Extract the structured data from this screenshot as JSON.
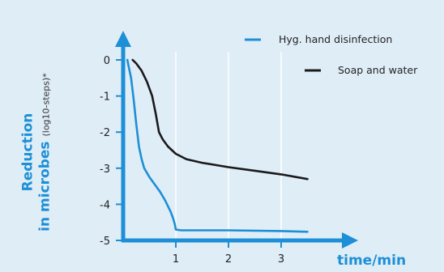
{
  "chart_data": {
    "type": "line",
    "ylabel_line1": "Reduction",
    "ylabel_line2": "in microbes",
    "ylabel_unit": "(log10-steps)*",
    "xlabel": "time/min",
    "xlim": [
      0,
      3.6
    ],
    "ylim": [
      -5,
      0
    ],
    "x_ticks": [
      1,
      2,
      3
    ],
    "y_ticks": [
      0,
      -1,
      -2,
      -3,
      -4,
      -5
    ],
    "x_tick_labels": [
      "1",
      "2",
      "3"
    ],
    "y_tick_labels": [
      "0",
      "-1",
      "-2",
      "-3",
      "-4",
      "-5"
    ],
    "legend_position": "top-right",
    "series": [
      {
        "name": "Hyg. hand disinfection",
        "color": "#1d8fd6",
        "points": [
          [
            0.08,
            0
          ],
          [
            0.1,
            -0.15
          ],
          [
            0.15,
            -0.5
          ],
          [
            0.2,
            -1.1
          ],
          [
            0.25,
            -1.8
          ],
          [
            0.3,
            -2.4
          ],
          [
            0.35,
            -2.75
          ],
          [
            0.4,
            -3.0
          ],
          [
            0.5,
            -3.25
          ],
          [
            0.6,
            -3.45
          ],
          [
            0.7,
            -3.65
          ],
          [
            0.8,
            -3.9
          ],
          [
            0.9,
            -4.2
          ],
          [
            0.95,
            -4.4
          ],
          [
            0.98,
            -4.55
          ],
          [
            1.0,
            -4.7
          ],
          [
            1.1,
            -4.72
          ],
          [
            2.0,
            -4.72
          ],
          [
            3.0,
            -4.74
          ],
          [
            3.5,
            -4.76
          ]
        ]
      },
      {
        "name": "Soap and water",
        "color": "#1a1a1a",
        "points": [
          [
            0.18,
            0
          ],
          [
            0.25,
            -0.1
          ],
          [
            0.35,
            -0.3
          ],
          [
            0.45,
            -0.6
          ],
          [
            0.55,
            -1.0
          ],
          [
            0.62,
            -1.5
          ],
          [
            0.68,
            -2.0
          ],
          [
            0.75,
            -2.2
          ],
          [
            0.85,
            -2.4
          ],
          [
            1.0,
            -2.6
          ],
          [
            1.2,
            -2.75
          ],
          [
            1.5,
            -2.85
          ],
          [
            2.0,
            -2.97
          ],
          [
            2.5,
            -3.07
          ],
          [
            3.0,
            -3.17
          ],
          [
            3.5,
            -3.3
          ]
        ]
      }
    ]
  }
}
